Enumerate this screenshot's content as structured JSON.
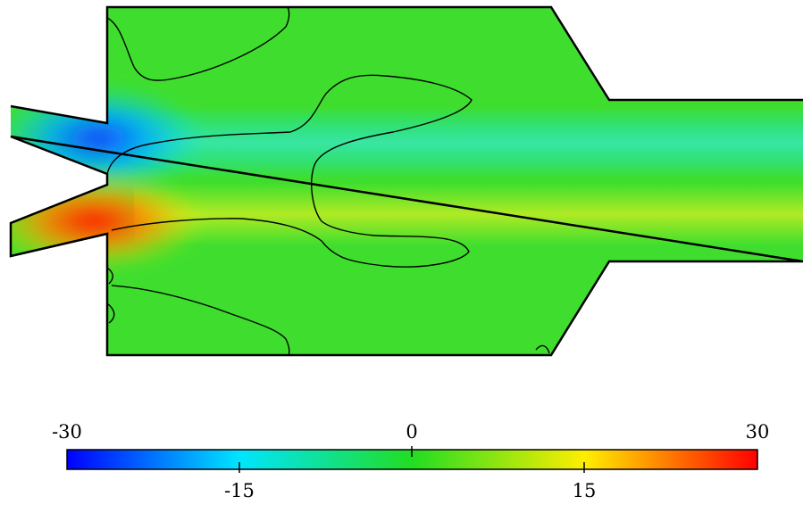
{
  "colorbar": {
    "min": -30,
    "max": 30,
    "top_labels": [
      "-30",
      "0",
      "30"
    ],
    "bottom_labels": [
      "-15",
      "15"
    ],
    "colors": [
      "#0000ff",
      "#00e5ff",
      "#22dd22",
      "#ffee00",
      "#ff0000"
    ]
  },
  "field": {
    "background_color": "#3fde2e",
    "contour_color": "#000000",
    "outline_color": "#000000"
  }
}
